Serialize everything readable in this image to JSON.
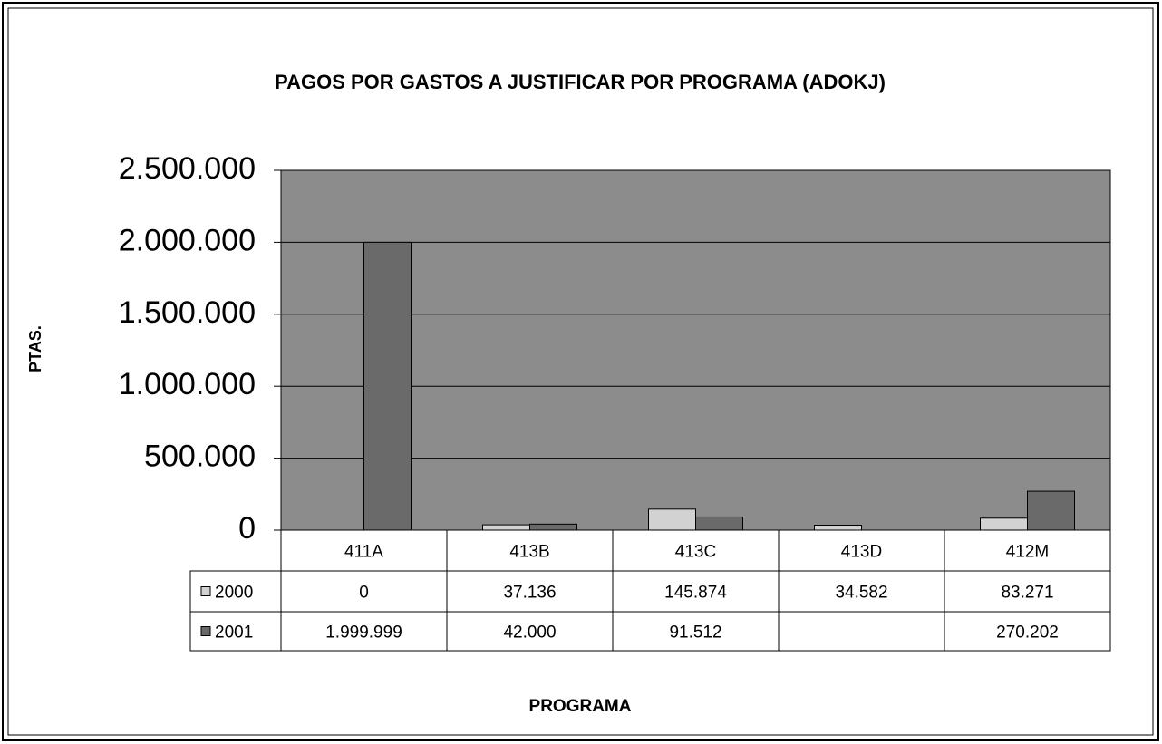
{
  "chart_data": {
    "type": "bar",
    "title": "PAGOS POR GASTOS A JUSTIFICAR POR PROGRAMA (ADOKJ)",
    "x_label": "PROGRAMA",
    "y_label": "PTAS.",
    "categories": [
      "411A",
      "413B",
      "413C",
      "413D",
      "412M"
    ],
    "series": [
      {
        "name": "2000",
        "color": "#d2d2d2",
        "values": [
          0,
          37136,
          145874,
          34582,
          83271
        ],
        "value_labels": [
          "0",
          "37.136",
          "145.874",
          "34.582",
          "83.271"
        ]
      },
      {
        "name": "2001",
        "color": "#6a6a6a",
        "values": [
          1999999,
          42000,
          91512,
          null,
          270202
        ],
        "value_labels": [
          "1.999.999",
          "42.000",
          "91.512",
          null,
          "270.202"
        ]
      }
    ],
    "ylim": [
      0,
      2500000
    ],
    "yticks": [
      0,
      {
        "value": 500000,
        "label": "500.000"
      },
      {
        "value": 1000000,
        "label": "1.000.000"
      },
      {
        "value": 1500000,
        "label": "1.500.000"
      },
      {
        "value": 2000000,
        "label": "2.000.000"
      },
      {
        "value": 2500000,
        "label": "2.500.000"
      }
    ],
    "grid": true
  }
}
